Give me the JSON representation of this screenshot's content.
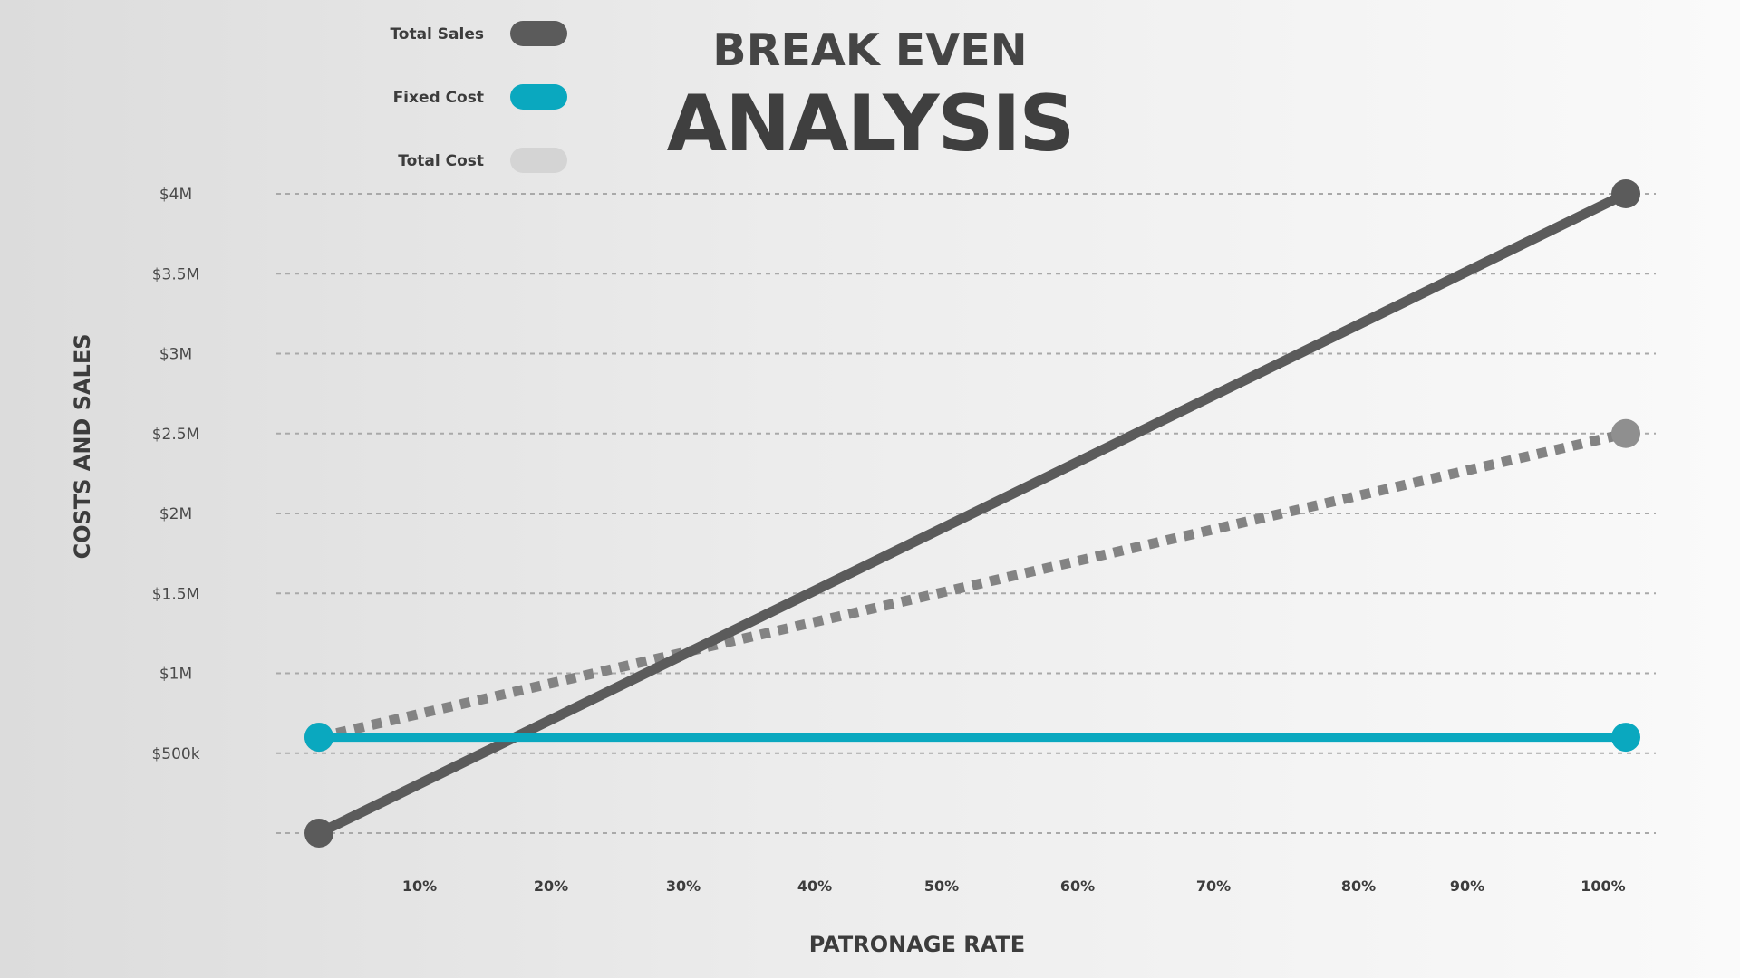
{
  "chart_data": {
    "type": "line",
    "title_line1": "BREAK EVEN",
    "title_line2": "ANALYSIS",
    "xlabel": "PATRONAGE RATE",
    "ylabel": "COSTS AND SALES",
    "x_tick_labels": [
      "10%",
      "20%",
      "30%",
      "40%",
      "50%",
      "60%",
      "70%",
      "80%",
      "90%",
      "100%"
    ],
    "x_tick_values": [
      10,
      20,
      30,
      40,
      50,
      60,
      70,
      80,
      90,
      100
    ],
    "y_tick_labels": [
      "$500k",
      "$1M",
      "$1.5M",
      "$2M",
      "$2.5M",
      "$3M",
      "$3.5M",
      "$4M"
    ],
    "y_tick_values": [
      500000,
      1000000,
      1500000,
      2000000,
      2500000,
      3000000,
      3500000,
      4000000
    ],
    "ylim": [
      0,
      4000000
    ],
    "xlim": [
      0,
      100
    ],
    "grid": true,
    "legend_position": "top-left",
    "series": [
      {
        "name": "Total Sales",
        "color": "#5b5b5b",
        "style": "solid",
        "x": [
          0,
          100
        ],
        "y": [
          0,
          4000000
        ]
      },
      {
        "name": "Fixed Cost",
        "color": "#0aa8bf",
        "style": "solid",
        "x": [
          0,
          100
        ],
        "y": [
          600000,
          600000
        ]
      },
      {
        "name": "Total Cost",
        "color": "#d4d4d4",
        "line_color": "#838383",
        "marker_color": "#8f8f8f",
        "style": "dotted",
        "x": [
          0,
          100
        ],
        "y": [
          600000,
          2500000
        ]
      }
    ]
  }
}
